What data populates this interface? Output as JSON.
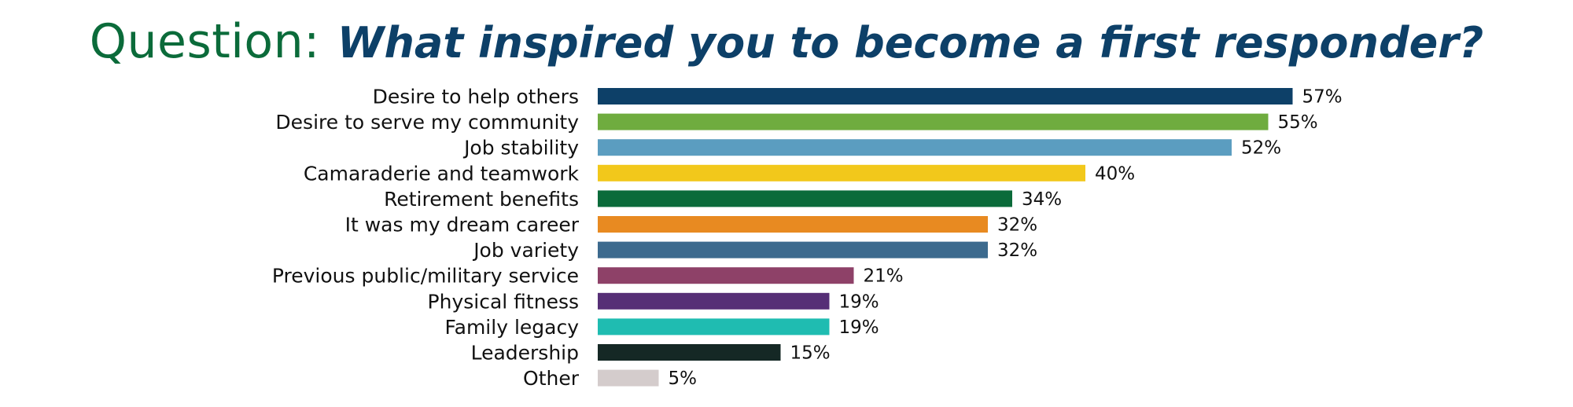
{
  "title": {
    "prefix": "Question:",
    "text": "What inspired you to become a first responder?",
    "prefix_color": "#0b6b3a",
    "text_color": "#0d4068"
  },
  "chart_data": {
    "type": "bar",
    "orientation": "horizontal",
    "title": "What inspired you to become a first responder?",
    "xlabel": "",
    "ylabel": "",
    "xlim": [
      0,
      100
    ],
    "grid": false,
    "value_suffix": "%",
    "categories": [
      "Desire to help others",
      "Desire to serve my community",
      "Job stability",
      "Camaraderie and teamwork",
      "Retirement benefits",
      "It was my dream career",
      "Job variety",
      "Previous public/military service",
      "Physical fitness",
      "Family legacy",
      "Leadership",
      "Other"
    ],
    "values": [
      57,
      55,
      52,
      40,
      34,
      32,
      32,
      21,
      19,
      19,
      15,
      5
    ],
    "colors": [
      "#0d4068",
      "#6fac3f",
      "#5b9dc0",
      "#f2c81b",
      "#0b6b3a",
      "#e88a21",
      "#3c6a8e",
      "#8e4168",
      "#562f76",
      "#1fbcb1",
      "#152825",
      "#d4cccc"
    ]
  }
}
